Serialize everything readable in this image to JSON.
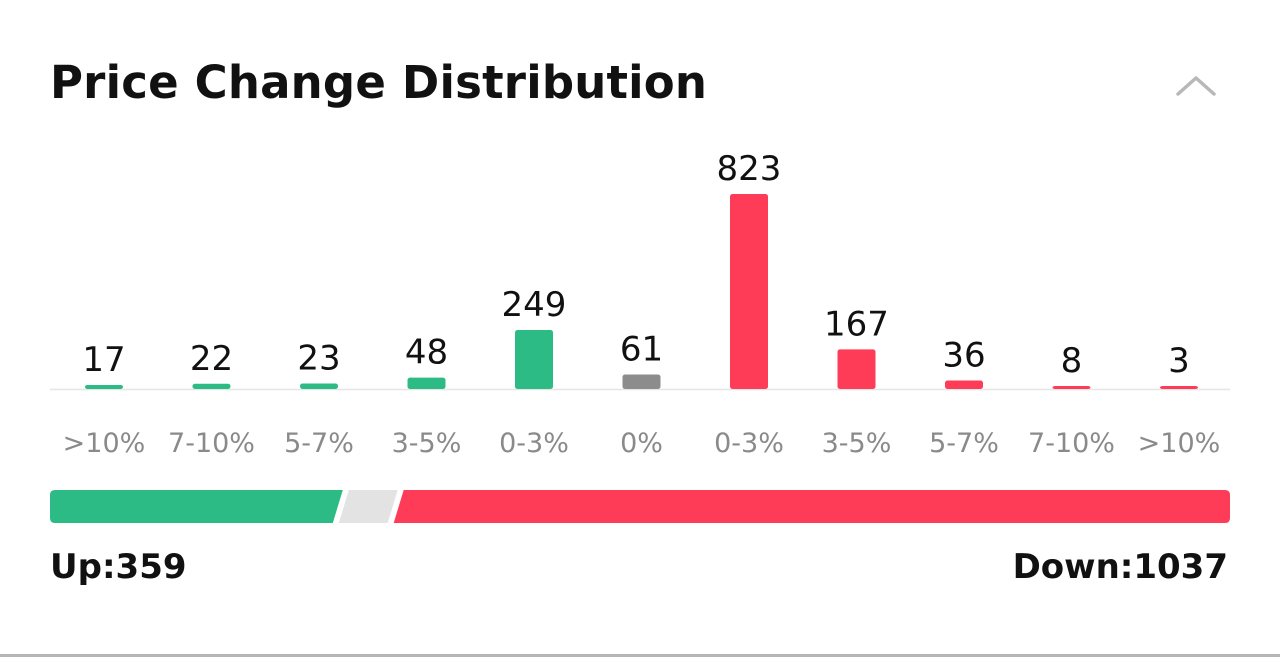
{
  "header": {
    "title": "Price Change Distribution",
    "collapse_icon": "chevron-up-icon"
  },
  "colors": {
    "up": "#2dbb85",
    "flat": "#8c8c8c",
    "down": "#ff3c57",
    "neutral_segment": "#e3e3e3",
    "baseline": "#e6e6e6"
  },
  "chart_data": {
    "type": "bar",
    "title": "Price Change Distribution",
    "categories": [
      ">10%",
      "7-10%",
      "5-7%",
      "3-5%",
      "0-3%",
      "0%",
      "0-3%",
      "3-5%",
      "5-7%",
      "7-10%",
      ">10%"
    ],
    "values": [
      17,
      22,
      23,
      48,
      249,
      61,
      823,
      167,
      36,
      8,
      3
    ],
    "groups": [
      "up",
      "up",
      "up",
      "up",
      "up",
      "flat",
      "down",
      "down",
      "down",
      "down",
      "down"
    ],
    "xlabel": "",
    "ylabel": "",
    "grid": false,
    "legend": "none",
    "data_labels": true
  },
  "summary": {
    "up_label": "Up:359",
    "down_label": "Down:1037",
    "up_value": 359,
    "flat_value": 61,
    "down_value": 1037
  }
}
